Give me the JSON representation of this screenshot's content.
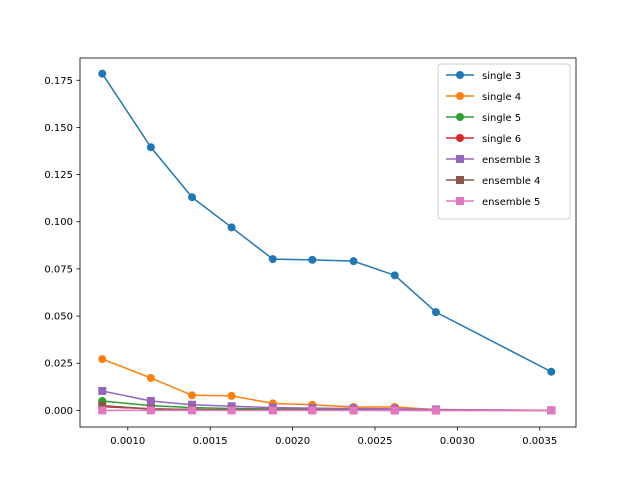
{
  "chart_data": {
    "type": "line",
    "title": "",
    "xlabel": "",
    "ylabel": "",
    "xlim": [
      0.00071,
      0.00372
    ],
    "ylim": [
      -0.0088,
      0.1868
    ],
    "grid": false,
    "legend_position": "top-right",
    "x_ticks": [
      {
        "value": 0.001,
        "label": "0.0010"
      },
      {
        "value": 0.0015,
        "label": "0.0015"
      },
      {
        "value": 0.002,
        "label": "0.0020"
      },
      {
        "value": 0.0025,
        "label": "0.0025"
      },
      {
        "value": 0.003,
        "label": "0.0030"
      },
      {
        "value": 0.0035,
        "label": "0.0035"
      }
    ],
    "y_ticks": [
      {
        "value": 0.0,
        "label": "0.000"
      },
      {
        "value": 0.025,
        "label": "0.025"
      },
      {
        "value": 0.05,
        "label": "0.050"
      },
      {
        "value": 0.075,
        "label": "0.075"
      },
      {
        "value": 0.1,
        "label": "0.100"
      },
      {
        "value": 0.125,
        "label": "0.125"
      },
      {
        "value": 0.15,
        "label": "0.150"
      },
      {
        "value": 0.175,
        "label": "0.175"
      }
    ],
    "series": [
      {
        "name": "single 3",
        "color": "#1f77b4",
        "marker": "circle",
        "x": [
          0.000845,
          0.00114,
          0.00139,
          0.00163,
          0.00188,
          0.00212,
          0.00237,
          0.00262,
          0.00287,
          0.00357
        ],
        "y": [
          0.1785,
          0.1395,
          0.113,
          0.097,
          0.0802,
          0.0798,
          0.0791,
          0.0716,
          0.0521,
          0.0205
        ]
      },
      {
        "name": "single 4",
        "color": "#ff7f0e",
        "marker": "circle",
        "x": [
          0.000845,
          0.00114,
          0.00139,
          0.00163,
          0.00188,
          0.00212,
          0.00237,
          0.00262,
          0.00287,
          0.00357
        ],
        "y": [
          0.0272,
          0.0172,
          0.008,
          0.0077,
          0.0037,
          0.003,
          0.0018,
          0.0018,
          0.0004,
          0.0
        ]
      },
      {
        "name": "single 5",
        "color": "#2ca02c",
        "marker": "circle",
        "x": [
          0.000845,
          0.00114,
          0.00139,
          0.00163,
          0.00188,
          0.00212,
          0.00237,
          0.00262,
          0.00287,
          0.00357
        ],
        "y": [
          0.005,
          0.0025,
          0.0015,
          0.001,
          0.0008,
          0.0006,
          0.0005,
          0.0004,
          0.0002,
          0.0
        ]
      },
      {
        "name": "single 6",
        "color": "#d62728",
        "marker": "circle",
        "x": [
          0.000845,
          0.00114,
          0.00139,
          0.00163,
          0.00188,
          0.00212,
          0.00237,
          0.00262,
          0.00287,
          0.00357
        ],
        "y": [
          0.002,
          0.0008,
          0.0005,
          0.0003,
          0.0002,
          0.0002,
          0.0001,
          0.0001,
          0.0,
          0.0
        ]
      },
      {
        "name": "ensemble 3",
        "color": "#9467bd",
        "marker": "square",
        "x": [
          0.000845,
          0.00114,
          0.00139,
          0.00163,
          0.00188,
          0.00212,
          0.00237,
          0.00262,
          0.00287,
          0.00357
        ],
        "y": [
          0.0103,
          0.005,
          0.003,
          0.0022,
          0.0015,
          0.0012,
          0.001,
          0.0008,
          0.0005,
          0.0
        ]
      },
      {
        "name": "ensemble 4",
        "color": "#8c564b",
        "marker": "square",
        "x": [
          0.000845,
          0.00114,
          0.00139,
          0.00163,
          0.00188,
          0.00212,
          0.00237,
          0.00262,
          0.00287,
          0.00357
        ],
        "y": [
          0.0025,
          0.0008,
          0.0005,
          0.0003,
          0.0002,
          0.0001,
          0.0001,
          0.0,
          0.0,
          0.0
        ]
      },
      {
        "name": "ensemble 5",
        "color": "#e377c2",
        "marker": "square",
        "x": [
          0.000845,
          0.00114,
          0.00139,
          0.00163,
          0.00188,
          0.00212,
          0.00237,
          0.00262,
          0.00287,
          0.00357
        ],
        "y": [
          0.0,
          0.0,
          0.0,
          0.0,
          0.0,
          0.0,
          0.0,
          0.0,
          0.0,
          0.0
        ]
      }
    ]
  }
}
